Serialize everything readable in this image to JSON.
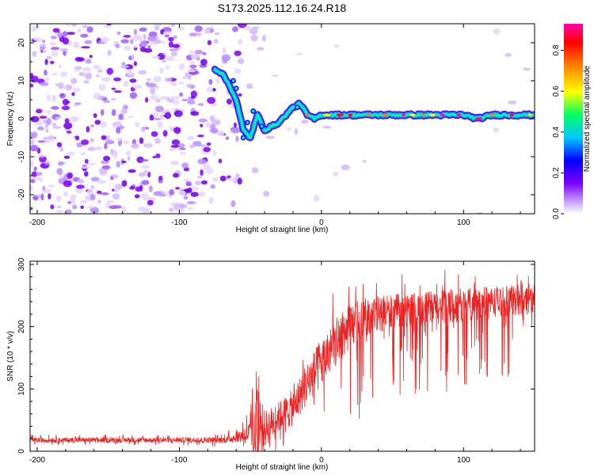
{
  "title": "S173.2025.112.16.24.R18",
  "chart_data": [
    {
      "type": "heatmap",
      "name": "spectrogram",
      "xlabel": "Height of straight line (km)",
      "ylabel": "Frequency (Hz)",
      "xlim": [
        -205,
        150
      ],
      "ylim": [
        -25,
        25
      ],
      "xticks": [
        -200,
        -100,
        0,
        100
      ],
      "yticks": [
        -20,
        -10,
        0,
        10,
        20
      ],
      "colorbar": {
        "label": "Normalized spectral amplitude",
        "range": [
          0.0,
          0.93
        ],
        "ticks": [
          "0.0",
          "0.2",
          "0.4",
          "0.6",
          "0.8"
        ],
        "tick_values": [
          0.0,
          0.2,
          0.4,
          0.6,
          0.8
        ],
        "colors": [
          "#ffffff",
          "#7e00ff",
          "#0000ff",
          "#00ffff",
          "#00ff00",
          "#ffff00",
          "#ff8000",
          "#ff0000",
          "#ff00aa"
        ]
      },
      "ridge": {
        "x": [
          -75,
          -70,
          -65,
          -60,
          -55,
          -50,
          -45,
          -40,
          -35,
          -30,
          -25,
          -20,
          -15,
          -10,
          -5,
          0,
          20,
          50,
          80,
          100,
          110,
          120,
          130,
          150
        ],
        "y": [
          13,
          12,
          9,
          5,
          -3,
          -5,
          1,
          -3,
          -2,
          -1,
          1,
          3,
          4,
          1,
          0,
          1,
          1,
          1,
          1,
          1,
          0,
          1,
          1,
          1
        ]
      },
      "grid": false
    },
    {
      "type": "line",
      "name": "snr",
      "xlabel": "Height of straight line (km)",
      "ylabel": "SNR (10 * v/v)",
      "xlim": [
        -205,
        150
      ],
      "ylim": [
        0,
        305
      ],
      "xticks": [
        -200,
        -100,
        0,
        100
      ],
      "yticks": [
        0,
        100,
        200,
        300
      ],
      "series": [
        {
          "color": "#ee2222",
          "envelope": {
            "x": [
              -205,
              -150,
              -100,
              -70,
              -60,
              -50,
              -45,
              -40,
              -30,
              -20,
              -10,
              0,
              10,
              20,
              30,
              50,
              80,
              100,
              120,
              150
            ],
            "base": [
              18,
              18,
              18,
              18,
              22,
              30,
              40,
              35,
              55,
              70,
              110,
              140,
              175,
              200,
              215,
              225,
              230,
              235,
              240,
              245
            ],
            "spread": [
              8,
              8,
              8,
              10,
              15,
              40,
              150,
              60,
              50,
              60,
              70,
              80,
              80,
              70,
              60,
              55,
              55,
              55,
              50,
              50
            ]
          }
        }
      ],
      "grid": false
    }
  ]
}
